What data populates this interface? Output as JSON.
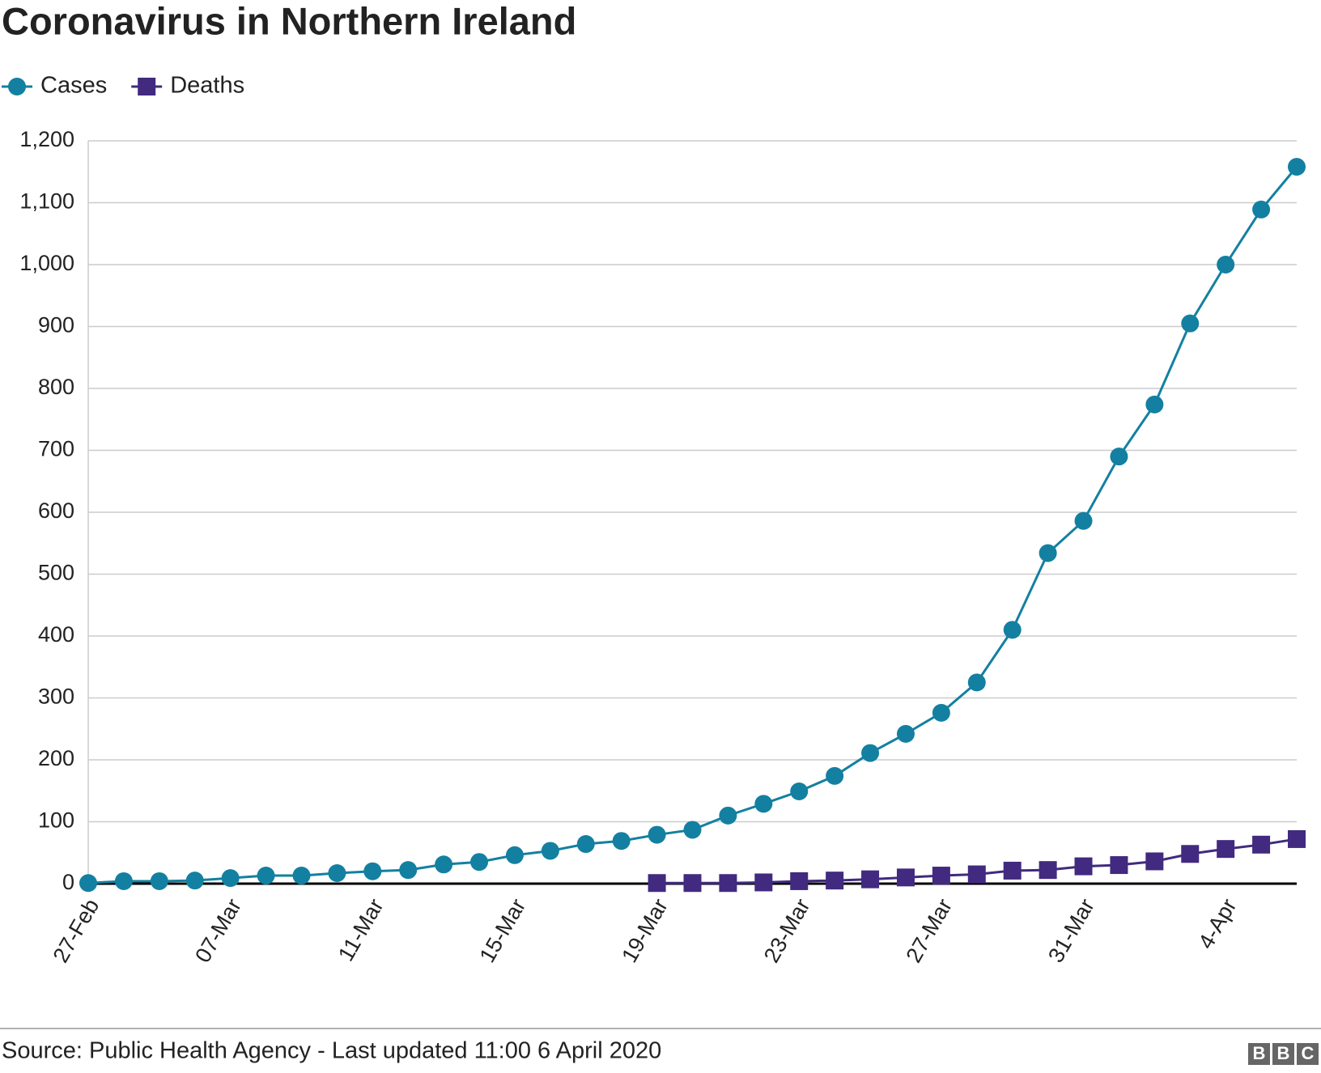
{
  "chart_data": {
    "type": "line",
    "title": "Coronavirus in Northern Ireland",
    "categories": [
      "27-Feb",
      null,
      null,
      null,
      "07-Mar",
      null,
      null,
      null,
      "11-Mar",
      null,
      null,
      null,
      "15-Mar",
      null,
      null,
      null,
      "19-Mar",
      null,
      null,
      null,
      "23-Mar",
      null,
      null,
      null,
      "27-Mar",
      null,
      null,
      null,
      "31-Mar",
      null,
      null,
      null,
      "4-Apr",
      null,
      null
    ],
    "series": [
      {
        "name": "Cases",
        "color": "#1380a1",
        "marker": "circle",
        "values": [
          1,
          4,
          4,
          5,
          9,
          13,
          13,
          17,
          20,
          22,
          31,
          35,
          46,
          53,
          64,
          69,
          79,
          87,
          110,
          129,
          149,
          174,
          211,
          242,
          276,
          325,
          410,
          534,
          586,
          690,
          774,
          905,
          1000,
          1089,
          1158
        ]
      },
      {
        "name": "Deaths",
        "color": "#412a7f",
        "marker": "square",
        "values": [
          null,
          null,
          null,
          null,
          null,
          null,
          null,
          null,
          null,
          null,
          null,
          null,
          null,
          null,
          null,
          null,
          1,
          1,
          1,
          2,
          4,
          5,
          7,
          10,
          13,
          15,
          21,
          22,
          28,
          30,
          36,
          48,
          56,
          63,
          72
        ]
      }
    ],
    "ylim": [
      0,
      1200
    ],
    "yticks": [
      0,
      100,
      200,
      300,
      400,
      500,
      600,
      700,
      800,
      900,
      {
        "value": 1000,
        "label": "1,000"
      },
      {
        "value": 1100,
        "label": "1,100"
      },
      {
        "value": 1200,
        "label": "1,200"
      }
    ],
    "grid": true,
    "source": "Source: Public Health Agency - Last updated 11:00 6 April 2020",
    "logo": [
      "B",
      "B",
      "C"
    ]
  }
}
